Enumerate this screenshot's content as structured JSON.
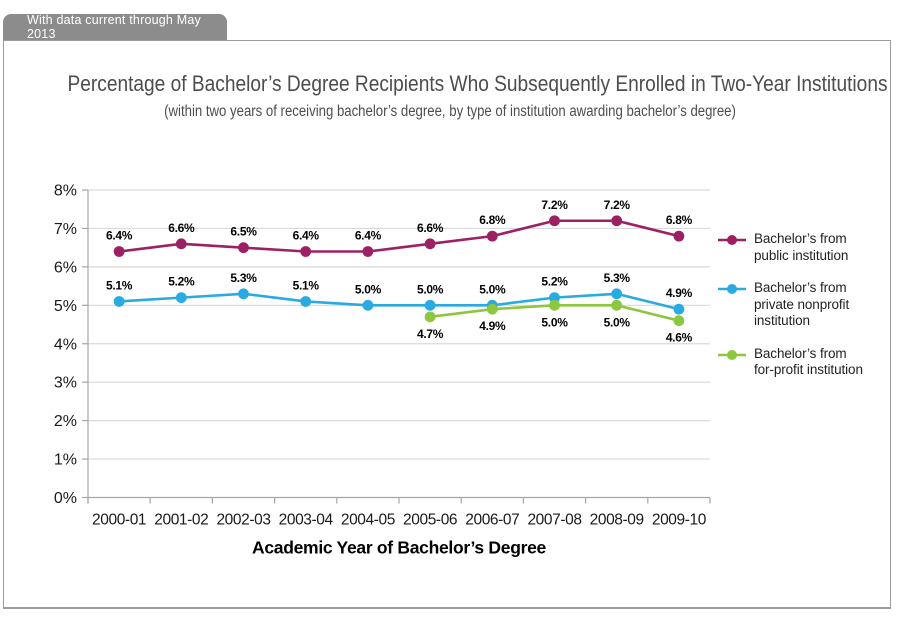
{
  "banner": {
    "text": "With data current through May 2013",
    "bg_color": "#8c8c8c",
    "text_color": "#ffffff"
  },
  "title": "Percentage of Bachelor’s Degree Recipients Who Subsequently Enrolled in Two-Year Institutions",
  "subtitle": "(within two years of receiving bachelor’s degree, by type of institution awarding bachelor’s degree)",
  "chart_data": {
    "type": "line",
    "title": "Percentage of Bachelor’s Degree Recipients Who Subsequently Enrolled in Two-Year Institutions",
    "subtitle": "(within two years of receiving bachelor’s degree, by type of institution awarding bachelor’s degree)",
    "categories": [
      "2000-01",
      "2001-02",
      "2002-03",
      "2003-04",
      "2004-05",
      "2005-06",
      "2006-07",
      "2007-08",
      "2008-09",
      "2009-10"
    ],
    "series": [
      {
        "name": "Bachelor’s from public institution",
        "color": "#9e2064",
        "label_position": "above",
        "values": [
          6.4,
          6.6,
          6.5,
          6.4,
          6.4,
          6.6,
          6.8,
          7.2,
          7.2,
          6.8
        ]
      },
      {
        "name": "Bachelor’s from private nonprofit institution",
        "color": "#29abe2",
        "label_position": "above",
        "values": [
          5.1,
          5.2,
          5.3,
          5.1,
          5.0,
          5.0,
          5.0,
          5.2,
          5.3,
          4.9
        ]
      },
      {
        "name": "Bachelor’s from for-profit institution",
        "color": "#8dc63f",
        "label_position": "below",
        "values": [
          null,
          null,
          null,
          null,
          null,
          4.7,
          4.9,
          5.0,
          5.0,
          4.6
        ]
      }
    ],
    "xlabel": "Academic Year of Bachelor’s Degree",
    "ylabel": "",
    "ylim": [
      0,
      8
    ],
    "ytick_step": 1,
    "ytick_suffix": "%",
    "value_label_format": "one-decimal-percent",
    "grid": true,
    "legend_position": "right",
    "grid_color": "#d9d9d9",
    "axis_color": "#a6a6a6",
    "text_color": "#1a1a1a"
  },
  "legend": {
    "items": [
      {
        "label": "Bachelor’s from\npublic institution"
      },
      {
        "label": "Bachelor’s from\nprivate nonprofit\ninstitution"
      },
      {
        "label": "Bachelor’s from\nfor-profit institution"
      }
    ]
  }
}
